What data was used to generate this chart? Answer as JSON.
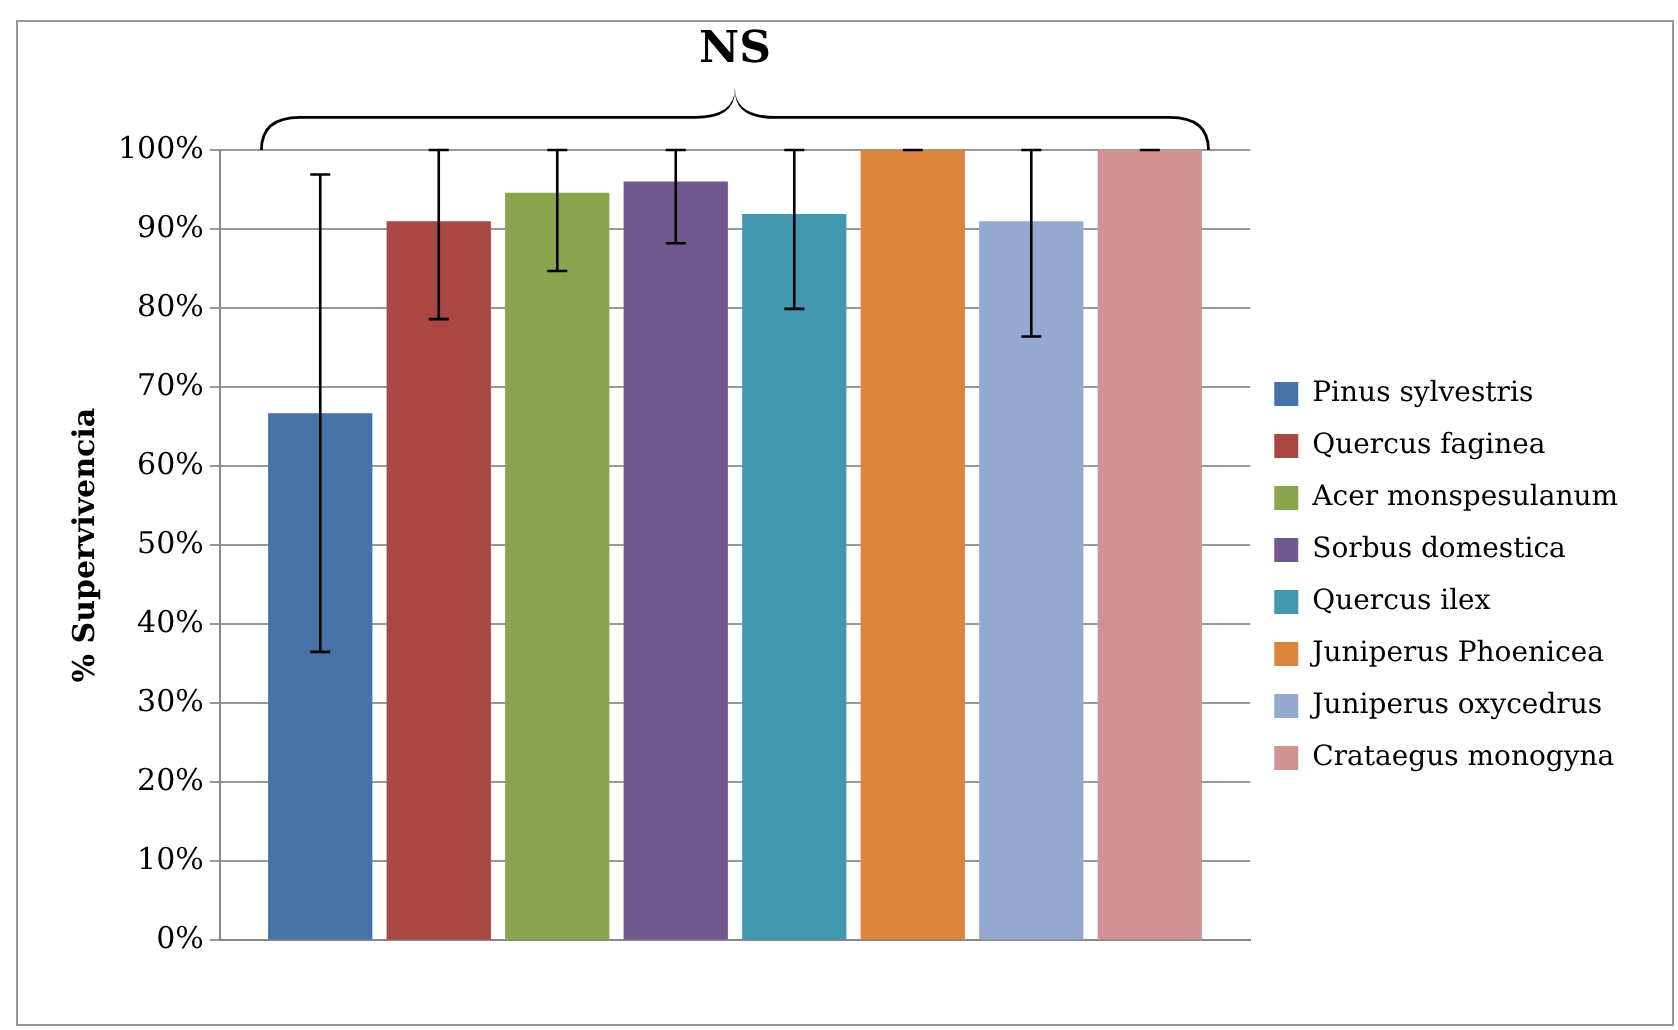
{
  "chart_data": {
    "type": "bar",
    "ylabel": "% Supervivencia",
    "categories": [
      null
    ],
    "series": [
      {
        "name": "Pinus sylvestris",
        "color": "#4572a7",
        "values": [
          66.7
        ],
        "errors": [
          30.2
        ]
      },
      {
        "name": "Quercus faginea",
        "color": "#aa4643",
        "values": [
          91.0
        ],
        "errors": [
          [
            78.6,
            100
          ]
        ]
      },
      {
        "name": "Acer monspesulanum",
        "color": "#89a54e",
        "values": [
          94.6
        ],
        "errors": [
          [
            84.7,
            100
          ]
        ]
      },
      {
        "name": "Sorbus domestica",
        "color": "#71588f",
        "values": [
          96.0
        ],
        "errors": [
          [
            88.2,
            100
          ]
        ]
      },
      {
        "name": "Quercus ilex",
        "color": "#4198af",
        "values": [
          91.9
        ],
        "errors": [
          [
            79.9,
            100
          ]
        ]
      },
      {
        "name": "Juniperus Phoenicea",
        "color": "#db843d",
        "values": [
          100
        ],
        "errors": [
          0
        ]
      },
      {
        "name": "Juniperus oxycedrus",
        "color": "#93a9cf",
        "values": [
          91.0
        ],
        "errors": [
          [
            76.4,
            100
          ]
        ]
      },
      {
        "name": "Crataegus monogyna",
        "color": "#d19392",
        "values": [
          100
        ],
        "errors": [
          0
        ]
      }
    ],
    "ylim": [
      0,
      100
    ],
    "yticks": [
      {
        "value": 0,
        "label": "0%"
      },
      {
        "value": 10,
        "label": "10%"
      },
      {
        "value": 20,
        "label": "20%"
      },
      {
        "value": 30,
        "label": "30%"
      },
      {
        "value": 40,
        "label": "40%"
      },
      {
        "value": 50,
        "label": "50%"
      },
      {
        "value": 60,
        "label": "60%"
      },
      {
        "value": 70,
        "label": "70%"
      },
      {
        "value": 80,
        "label": "80%"
      },
      {
        "value": 90,
        "label": "90%"
      },
      {
        "value": 100,
        "label": "100%"
      }
    ],
    "grid": "y",
    "legend": "right",
    "annotations": [
      "NS"
    ]
  }
}
